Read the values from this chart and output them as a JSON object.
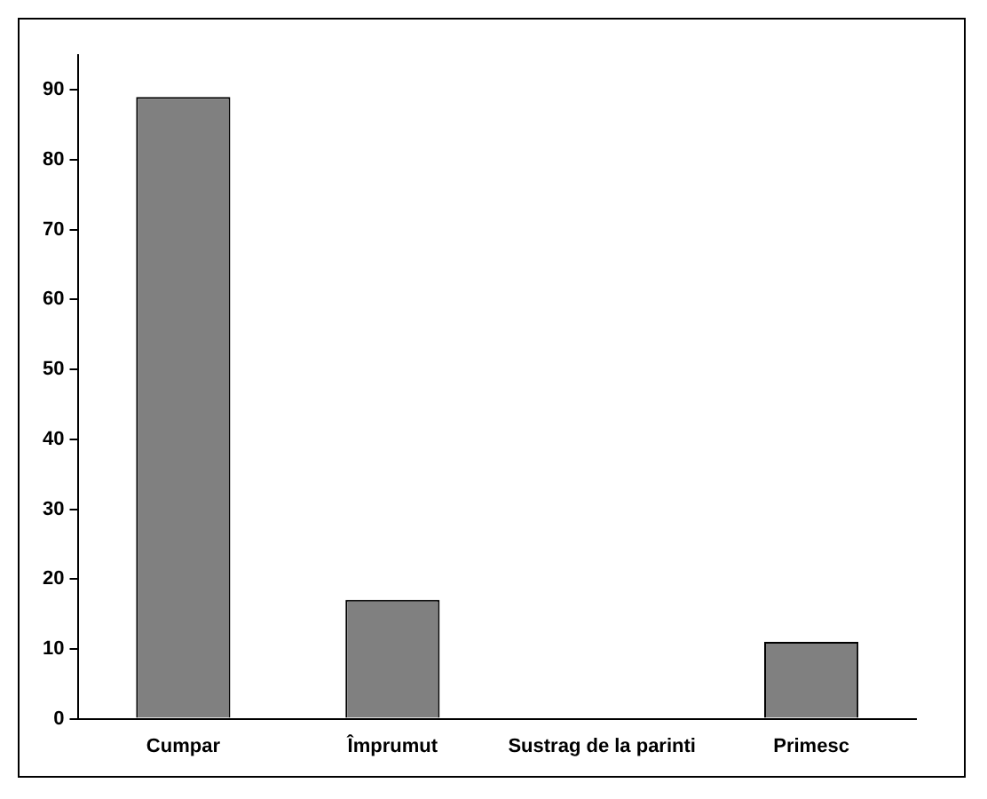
{
  "chart_data": {
    "type": "bar",
    "categories": [
      "Cumpar",
      "Împrumut",
      "Sustrag de la parinti",
      "Primesc"
    ],
    "values": [
      89,
      17,
      0,
      11
    ],
    "color": "#808080",
    "ylim": [
      0,
      95
    ],
    "yticks": [
      0,
      10,
      20,
      30,
      40,
      50,
      60,
      70,
      80,
      90
    ],
    "grid": false,
    "legend": false
  }
}
